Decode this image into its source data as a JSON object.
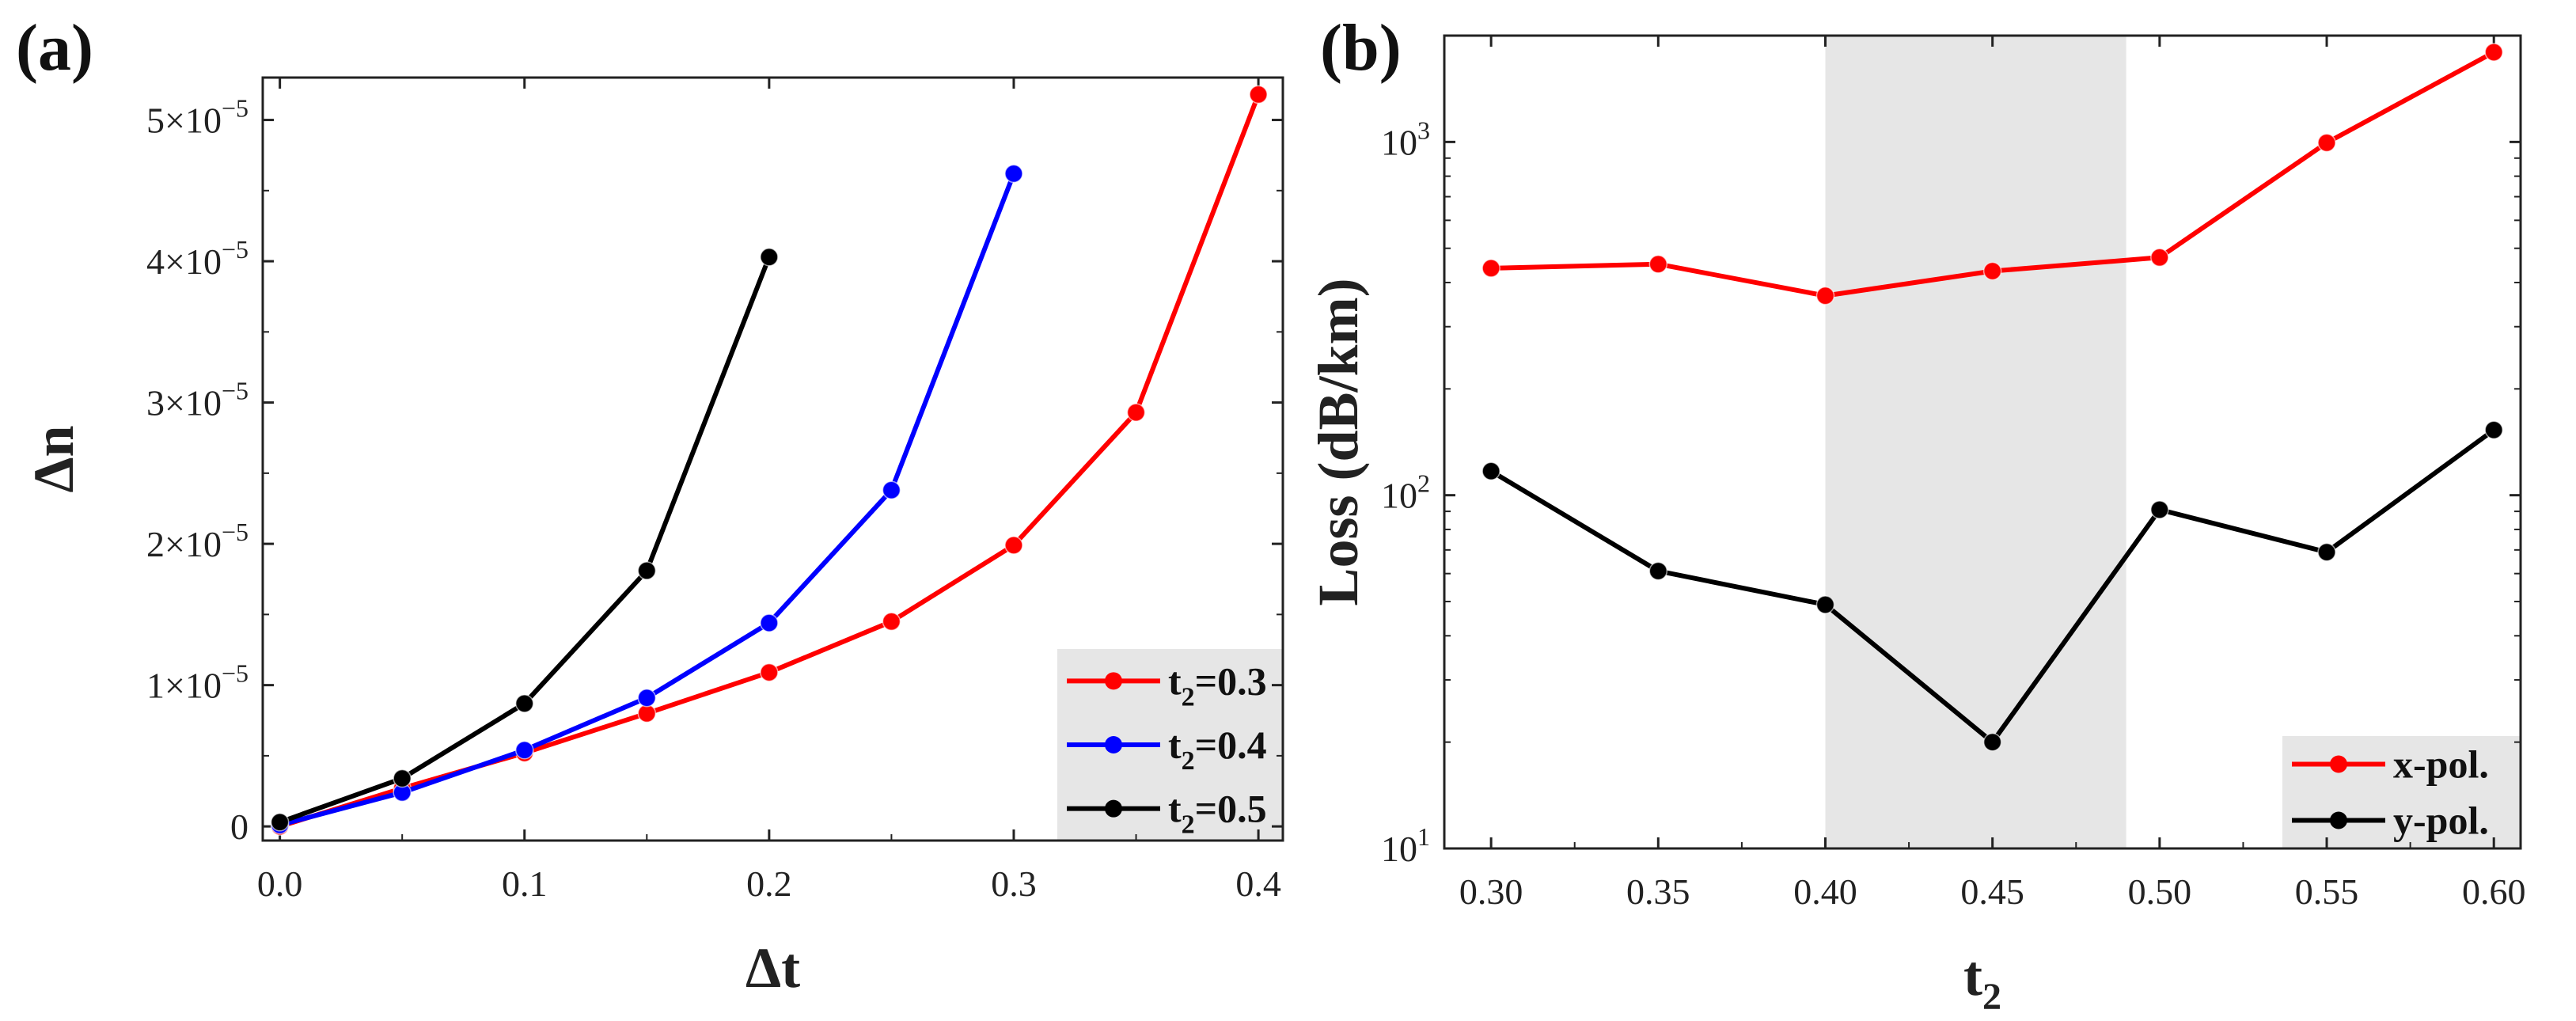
{
  "chart_data": [
    {
      "panel_label": "(a)",
      "type": "line",
      "xlabel": "Δt",
      "ylabel": "Δn",
      "xlim": [
        -0.007,
        0.41
      ],
      "ylim": [
        -1e-06,
        5.3e-05
      ],
      "xticks": [
        {
          "v": 0,
          "label": "0.0"
        },
        {
          "v": 0.1,
          "label": "0.1"
        },
        {
          "v": 0.2,
          "label": "0.2"
        },
        {
          "v": 0.3,
          "label": "0.3"
        },
        {
          "v": 0.4,
          "label": "0.4"
        }
      ],
      "yticks": [
        {
          "v": 0,
          "mant": "0",
          "exp": ""
        },
        {
          "v": 1e-05,
          "mant": "1×10",
          "exp": "−5"
        },
        {
          "v": 2e-05,
          "mant": "2×10",
          "exp": "−5"
        },
        {
          "v": 3e-05,
          "mant": "3×10",
          "exp": "−5"
        },
        {
          "v": 4e-05,
          "mant": "4×10",
          "exp": "−5"
        },
        {
          "v": 5e-05,
          "mant": "5×10",
          "exp": "−5"
        }
      ],
      "legend_placement": "bottom-right",
      "series": [
        {
          "name": "t2=0.3",
          "label_base": "t",
          "label_sub": "2",
          "label_rest": "=0.3",
          "color": "#ff0000",
          "x": [
            0,
            0.05,
            0.1,
            0.15,
            0.2,
            0.25,
            0.3,
            0.35,
            0.4
          ],
          "y": [
            0,
            2.7e-06,
            5.2e-06,
            8e-06,
            1.09e-05,
            1.45e-05,
            1.99e-05,
            2.93e-05,
            5.18e-05
          ]
        },
        {
          "name": "t2=0.4",
          "label_base": "t",
          "label_sub": "2",
          "label_rest": "=0.4",
          "color": "#0000ff",
          "x": [
            0,
            0.05,
            0.1,
            0.15,
            0.2,
            0.25,
            0.3
          ],
          "y": [
            1e-07,
            2.4e-06,
            5.4e-06,
            9.1e-06,
            1.44e-05,
            2.38e-05,
            4.62e-05
          ]
        },
        {
          "name": "t2=0.5",
          "label_base": "t",
          "label_sub": "2",
          "label_rest": "=0.5",
          "color": "#000000",
          "x": [
            0,
            0.05,
            0.1,
            0.15,
            0.2
          ],
          "y": [
            3e-07,
            3.4e-06,
            8.7e-06,
            1.81e-05,
            4.03e-05
          ]
        }
      ]
    },
    {
      "panel_label": "(b)",
      "type": "line",
      "yscale": "log",
      "xlabel_base": "t",
      "xlabel_sub": "2",
      "ylabel": "Loss (dB/km)",
      "xlim": [
        0.286,
        0.608
      ],
      "ylim": [
        10,
        2000
      ],
      "shaded_region_x": [
        0.4,
        0.49
      ],
      "xticks": [
        {
          "v": 0.3,
          "label": "0.30"
        },
        {
          "v": 0.35,
          "label": "0.35"
        },
        {
          "v": 0.4,
          "label": "0.40"
        },
        {
          "v": 0.45,
          "label": "0.45"
        },
        {
          "v": 0.5,
          "label": "0.50"
        },
        {
          "v": 0.55,
          "label": "0.55"
        },
        {
          "v": 0.6,
          "label": "0.60"
        }
      ],
      "yticks": [
        {
          "v": 10,
          "mant": "10",
          "exp": "1"
        },
        {
          "v": 100,
          "mant": "10",
          "exp": "2"
        },
        {
          "v": 1000,
          "mant": "10",
          "exp": "3"
        }
      ],
      "legend_placement": "bottom-right",
      "series": [
        {
          "name": "x-pol.",
          "color": "#ff0000",
          "x": [
            0.3,
            0.35,
            0.4,
            0.45,
            0.5,
            0.55,
            0.6
          ],
          "y": [
            439,
            451,
            367,
            431,
            471,
            995,
            1795
          ]
        },
        {
          "name": "y-pol.",
          "color": "#000000",
          "x": [
            0.3,
            0.35,
            0.4,
            0.45,
            0.5,
            0.55,
            0.6
          ],
          "y": [
            117,
            61,
            49,
            20,
            91,
            69,
            153
          ]
        }
      ]
    }
  ]
}
